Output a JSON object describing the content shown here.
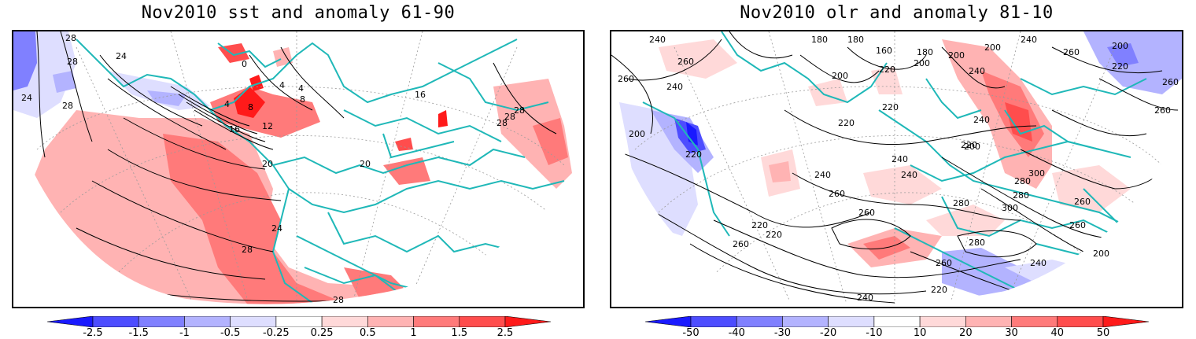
{
  "panels": [
    {
      "title": "Nov2010 sst and anomaly 61-90",
      "contour_labels": [
        "28",
        "28",
        "24",
        "24",
        "28",
        "0",
        "4",
        "4",
        "4",
        "8",
        "8",
        "12",
        "16",
        "16",
        "20",
        "20",
        "24",
        "28",
        "28",
        "28",
        "28",
        "28"
      ],
      "colorbar_labels": [
        "-2.5",
        "-1.5",
        "-1",
        "-0.5",
        "-0.25",
        "0.25",
        "0.5",
        "1",
        "1.5",
        "2.5"
      ],
      "colorbar_colors": [
        "#1a1aff",
        "#4d4dff",
        "#8080ff",
        "#b3b3ff",
        "#dedeff",
        "#ffffff",
        "#ffd9d9",
        "#ffb3b3",
        "#ff7a7a",
        "#ff4d4d",
        "#ff1a1a"
      ]
    },
    {
      "title": "Nov2010 olr and anomaly 81-10",
      "contour_labels": [
        "240",
        "180",
        "180",
        "160",
        "180",
        "200",
        "200",
        "240",
        "260",
        "200",
        "220",
        "260",
        "240",
        "260",
        "200",
        "220",
        "200",
        "220",
        "200",
        "220",
        "240",
        "260",
        "240",
        "260",
        "200",
        "220",
        "220",
        "240",
        "240",
        "240",
        "260",
        "260",
        "280",
        "280",
        "300",
        "300",
        "280",
        "260",
        "260",
        "280",
        "220",
        "220",
        "240",
        "260",
        "240",
        "260",
        "200",
        "220"
      ],
      "colorbar_labels": [
        "-50",
        "-40",
        "-30",
        "-20",
        "-10",
        "10",
        "20",
        "30",
        "40",
        "50"
      ],
      "colorbar_colors": [
        "#1a1aff",
        "#4d4dff",
        "#8080ff",
        "#b3b3ff",
        "#dedeff",
        "#ffffff",
        "#ffd9d9",
        "#ffb3b3",
        "#ff7a7a",
        "#ff4d4d",
        "#ff1a1a"
      ]
    }
  ]
}
